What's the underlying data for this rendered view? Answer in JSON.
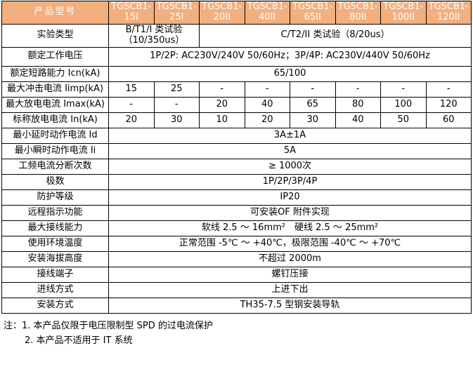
{
  "colors": {
    "header_bg": "#F4AF7E",
    "header_text": "#FFFFFF",
    "border": "#000000",
    "body_bg": "#FFFFFF",
    "text": "#000000"
  },
  "table": {
    "header": {
      "label": "产品型号",
      "models": [
        {
          "line1": "TGSCB1-",
          "line2": "15I"
        },
        {
          "line1": "TGSCB1-",
          "line2": "25I"
        },
        {
          "line1": "TGSCB1-",
          "line2": "20II"
        },
        {
          "line1": "TGSCB1-",
          "line2": "40II"
        },
        {
          "line1": "TGSCB1-",
          "line2": "65II"
        },
        {
          "line1": "TGSCB1-",
          "line2": "80II"
        },
        {
          "line1": "TGSCB1-",
          "line2": "100II"
        },
        {
          "line1": "TGSCB1-",
          "line2": "120II"
        }
      ]
    },
    "rows": [
      {
        "label": "实验类型",
        "cells": [
          {
            "text": "B/T1/I 类试验\n（10/350us）",
            "span": 2
          },
          {
            "text": "C/T2/II 类试验（8/20us）",
            "span": 6
          }
        ]
      },
      {
        "label": "额定工作电压",
        "cells": [
          {
            "text": "1P/2P: AC230V/240V 50/60Hz；3P/4P: AC230V/440V 50/60Hz",
            "span": 8
          }
        ]
      },
      {
        "label": "额定短路能力 Icn(kA)",
        "cells": [
          {
            "text": "65/100",
            "span": 8
          }
        ]
      },
      {
        "label": "最大冲击电流 Iimp(kA)",
        "cells": [
          {
            "text": "15",
            "span": 1
          },
          {
            "text": "25",
            "span": 1
          },
          {
            "text": "-",
            "span": 1
          },
          {
            "text": "-",
            "span": 1
          },
          {
            "text": "-",
            "span": 1
          },
          {
            "text": "-",
            "span": 1
          },
          {
            "text": "-",
            "span": 1
          },
          {
            "text": "-",
            "span": 1
          }
        ]
      },
      {
        "label": "最大放电电流 Imax(kA)",
        "cells": [
          {
            "text": "-",
            "span": 1
          },
          {
            "text": "-",
            "span": 1
          },
          {
            "text": "20",
            "span": 1
          },
          {
            "text": "40",
            "span": 1
          },
          {
            "text": "65",
            "span": 1
          },
          {
            "text": "80",
            "span": 1
          },
          {
            "text": "100",
            "span": 1
          },
          {
            "text": "120",
            "span": 1
          }
        ]
      },
      {
        "label": "标称放电电流 In(kA)",
        "cells": [
          {
            "text": "20",
            "span": 1
          },
          {
            "text": "30",
            "span": 1
          },
          {
            "text": "10",
            "span": 1
          },
          {
            "text": "20",
            "span": 1
          },
          {
            "text": "30",
            "span": 1
          },
          {
            "text": "40",
            "span": 1
          },
          {
            "text": "50",
            "span": 1
          },
          {
            "text": "60",
            "span": 1
          }
        ]
      },
      {
        "label": "最小延时动作电流 Id",
        "cells": [
          {
            "text": "3A±1A",
            "span": 8
          }
        ]
      },
      {
        "label": "最小瞬时动作电流 Ii",
        "cells": [
          {
            "text": "5A",
            "span": 8
          }
        ]
      },
      {
        "label": "工频电流分断次数",
        "cells": [
          {
            "text": "≥ 1000次",
            "span": 8
          }
        ]
      },
      {
        "label": "极数",
        "cells": [
          {
            "text": "1P/2P/3P/4P",
            "span": 8
          }
        ]
      },
      {
        "label": "防护等级",
        "cells": [
          {
            "text": "IP20",
            "span": 8
          }
        ]
      },
      {
        "label": "远程指示功能",
        "cells": [
          {
            "text": "可安装OF 附件实现",
            "span": 8
          }
        ]
      },
      {
        "label": "最大接线能力",
        "cells": [
          {
            "text": "软线 2.5 ～ 16mm²　硬线 2.5 ～ 25mm²",
            "span": 8
          }
        ]
      },
      {
        "label": "使用环境温度",
        "cells": [
          {
            "text": "正常范围 -5℃ ～ +40℃，极限范围 -40℃ ～ +70℃",
            "span": 8
          }
        ]
      },
      {
        "label": "安装海拔高度",
        "cells": [
          {
            "text": "不超过 2000m",
            "span": 8
          }
        ]
      },
      {
        "label": "接线端子",
        "cells": [
          {
            "text": "螺钉压接",
            "span": 8
          }
        ]
      },
      {
        "label": "进线方式",
        "cells": [
          {
            "text": "上进下出",
            "span": 8
          }
        ]
      },
      {
        "label": "安装方式",
        "cells": [
          {
            "text": "TH35-7.5 型钢安装导轨",
            "span": 8
          }
        ]
      }
    ]
  },
  "notes": {
    "prefix": "注：",
    "items": [
      "1. 本产品仅限于电压限制型 SPD 的过电流保护",
      "2. 本产品不适用于 IT 系统"
    ]
  }
}
